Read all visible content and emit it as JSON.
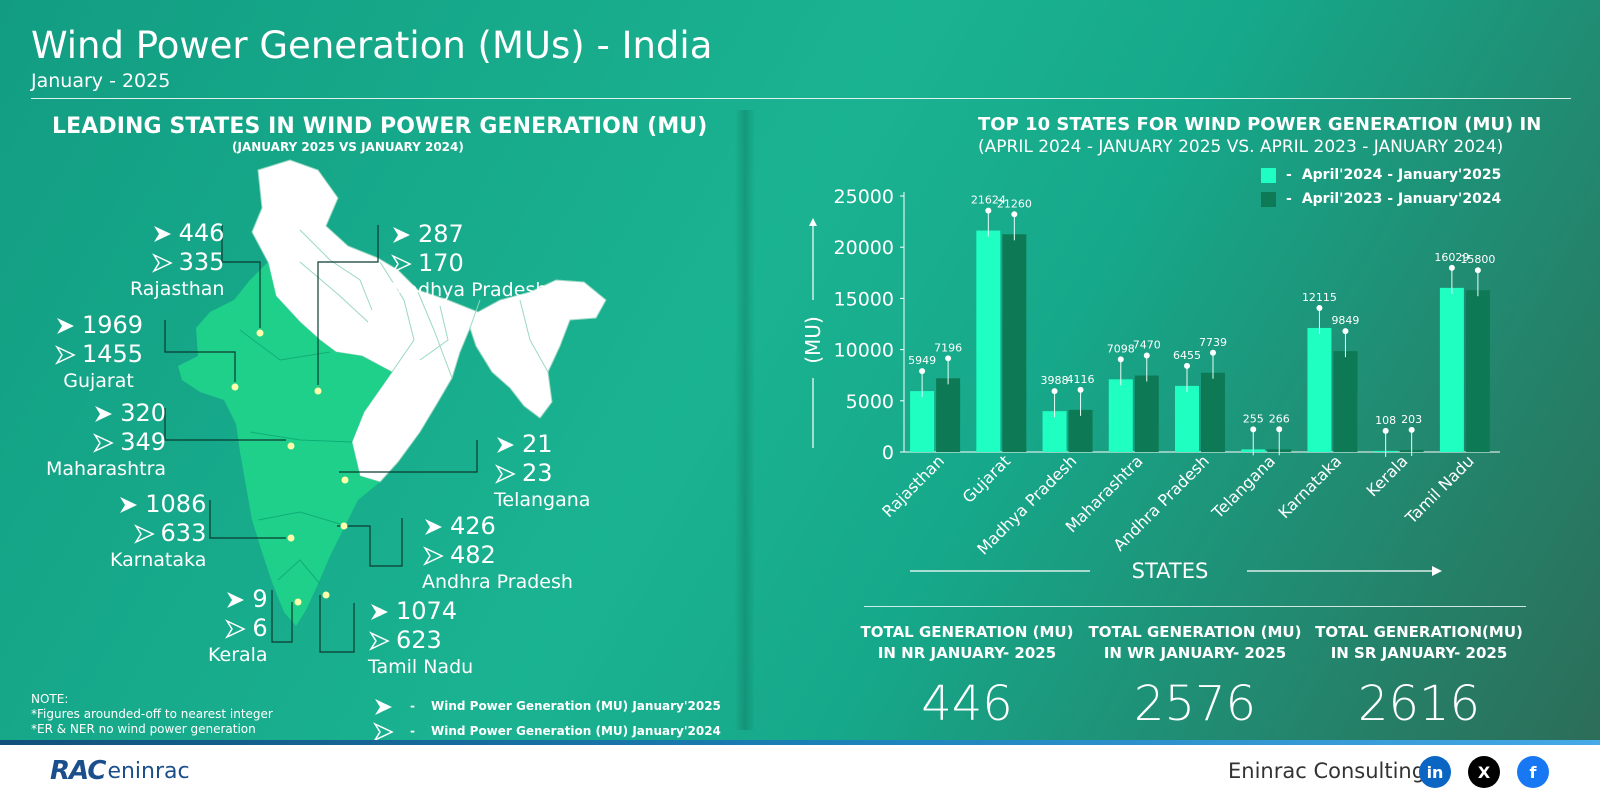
{
  "header": {
    "title": "Wind Power Generation (MUs) - India",
    "subtitle": "January - 2025"
  },
  "left_panel": {
    "title": "LEADING STATES IN WIND POWER GENERATION (MU)",
    "subtitle": "(JANUARY 2025 VS JANUARY 2024)",
    "states": [
      {
        "name": "Rajasthan",
        "jan2025": "446",
        "jan2024": "335"
      },
      {
        "name": "Madhya Pradesh",
        "jan2025": "287",
        "jan2024": "170"
      },
      {
        "name": "Gujarat",
        "jan2025": "1969",
        "jan2024": "1455"
      },
      {
        "name": "Maharashtra",
        "jan2025": "320",
        "jan2024": "349"
      },
      {
        "name": "Telangana",
        "jan2025": "21",
        "jan2024": "23"
      },
      {
        "name": "Karnataka",
        "jan2025": "1086",
        "jan2024": "633"
      },
      {
        "name": "Andhra Pradesh",
        "jan2025": "426",
        "jan2024": "482"
      },
      {
        "name": "Kerala",
        "jan2025": "9",
        "jan2024": "6"
      },
      {
        "name": "Tamil Nadu",
        "jan2025": "1074",
        "jan2024": "623"
      }
    ],
    "note": {
      "heading": "NOTE:",
      "line1": "*Figures arounded-off to nearest integer",
      "line2": "*ER & NER no wind power generation"
    },
    "legend": {
      "solid": "Wind Power Generation (MU) January'2025",
      "outline": "Wind Power Generation (MU) January'2024",
      "dash": "-"
    },
    "colors": {
      "map_highlight": "#1fd68f",
      "map_other": "#ffffff"
    }
  },
  "chart_data": {
    "type": "bar",
    "title": "TOP 10 STATES FOR WIND POWER GENERATION (MU) IN",
    "subtitle": "(APRIL 2024 - JANUARY 2025 VS. APRIL 2023 - JANUARY 2024)",
    "xlabel": "STATES",
    "ylabel": "(MU)",
    "ylim": [
      0,
      25000
    ],
    "yticks": [
      0,
      5000,
      10000,
      15000,
      20000,
      25000
    ],
    "categories": [
      "Rajasthan",
      "Gujarat",
      "Madhya Pradesh",
      "Maharashtra",
      "Andhra Pradesh",
      "Telangana",
      "Karnataka",
      "Kerala",
      "Tamil Nadu"
    ],
    "series": [
      {
        "name": "April'2024 - January'2025",
        "color": "#1fffc2",
        "values": [
          5949,
          21624,
          3988,
          7098,
          6455,
          255,
          12115,
          108,
          16029
        ]
      },
      {
        "name": "April'2023 - January'2024",
        "color": "#0d7a55",
        "values": [
          7196,
          21260,
          4116,
          7470,
          7739,
          266,
          9849,
          203,
          15800
        ]
      }
    ],
    "legend_position": "top-right",
    "grid": false
  },
  "totals": [
    {
      "line1": "TOTAL  GENERATION (MU)",
      "line2": "IN NR JANUARY- 2025",
      "value": "446"
    },
    {
      "line1": "TOTAL  GENERATION (MU)",
      "line2": "IN WR JANUARY- 2025",
      "value": "2576"
    },
    {
      "line1": "TOTAL  GENERATION(MU)",
      "line2": "IN SR JANUARY- 2025",
      "value": "2616"
    }
  ],
  "footer": {
    "logo_rac": "RAC",
    "logo_text": "eninrac",
    "company": "Eninrac Consulting",
    "social": [
      {
        "icon": "linkedin-icon",
        "glyph": "in",
        "color": "#0a66c2"
      },
      {
        "icon": "x-icon",
        "glyph": "X",
        "color": "#000000"
      },
      {
        "icon": "facebook-icon",
        "glyph": "f",
        "color": "#1877f2"
      }
    ]
  }
}
